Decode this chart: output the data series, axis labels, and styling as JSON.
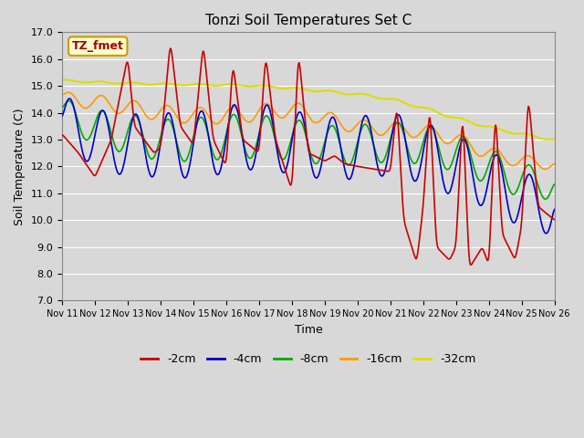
{
  "title": "Tonzi Soil Temperatures Set C",
  "xlabel": "Time",
  "ylabel": "Soil Temperature (C)",
  "ylim": [
    7.0,
    17.0
  ],
  "yticks": [
    7.0,
    8.0,
    9.0,
    10.0,
    11.0,
    12.0,
    13.0,
    14.0,
    15.0,
    16.0,
    17.0
  ],
  "xtick_labels": [
    "Nov 11",
    "Nov 12",
    "Nov 13",
    "Nov 14",
    "Nov 15",
    "Nov 16",
    "Nov 17",
    "Nov 18",
    "Nov 19",
    "Nov 20",
    "Nov 21",
    "Nov 22",
    "Nov 23",
    "Nov 24",
    "Nov 25",
    "Nov 26"
  ],
  "colors": {
    "m2cm": "#cc0000",
    "m4cm": "#0000cc",
    "m8cm": "#00aa00",
    "m16cm": "#ff9900",
    "m32cm": "#dddd00"
  },
  "label_box_text": "TZ_fmet",
  "label_box_facecolor": "#ffffcc",
  "label_box_edgecolor": "#cc9900",
  "label_text_color": "#aa0000",
  "fig_facecolor": "#d8d8d8",
  "grid_color": "#ffffff",
  "legend_labels": [
    "-2cm",
    "-4cm",
    "-8cm",
    "-16cm",
    "-32cm"
  ],
  "n_days": 15,
  "n_pts_per_day": 48
}
